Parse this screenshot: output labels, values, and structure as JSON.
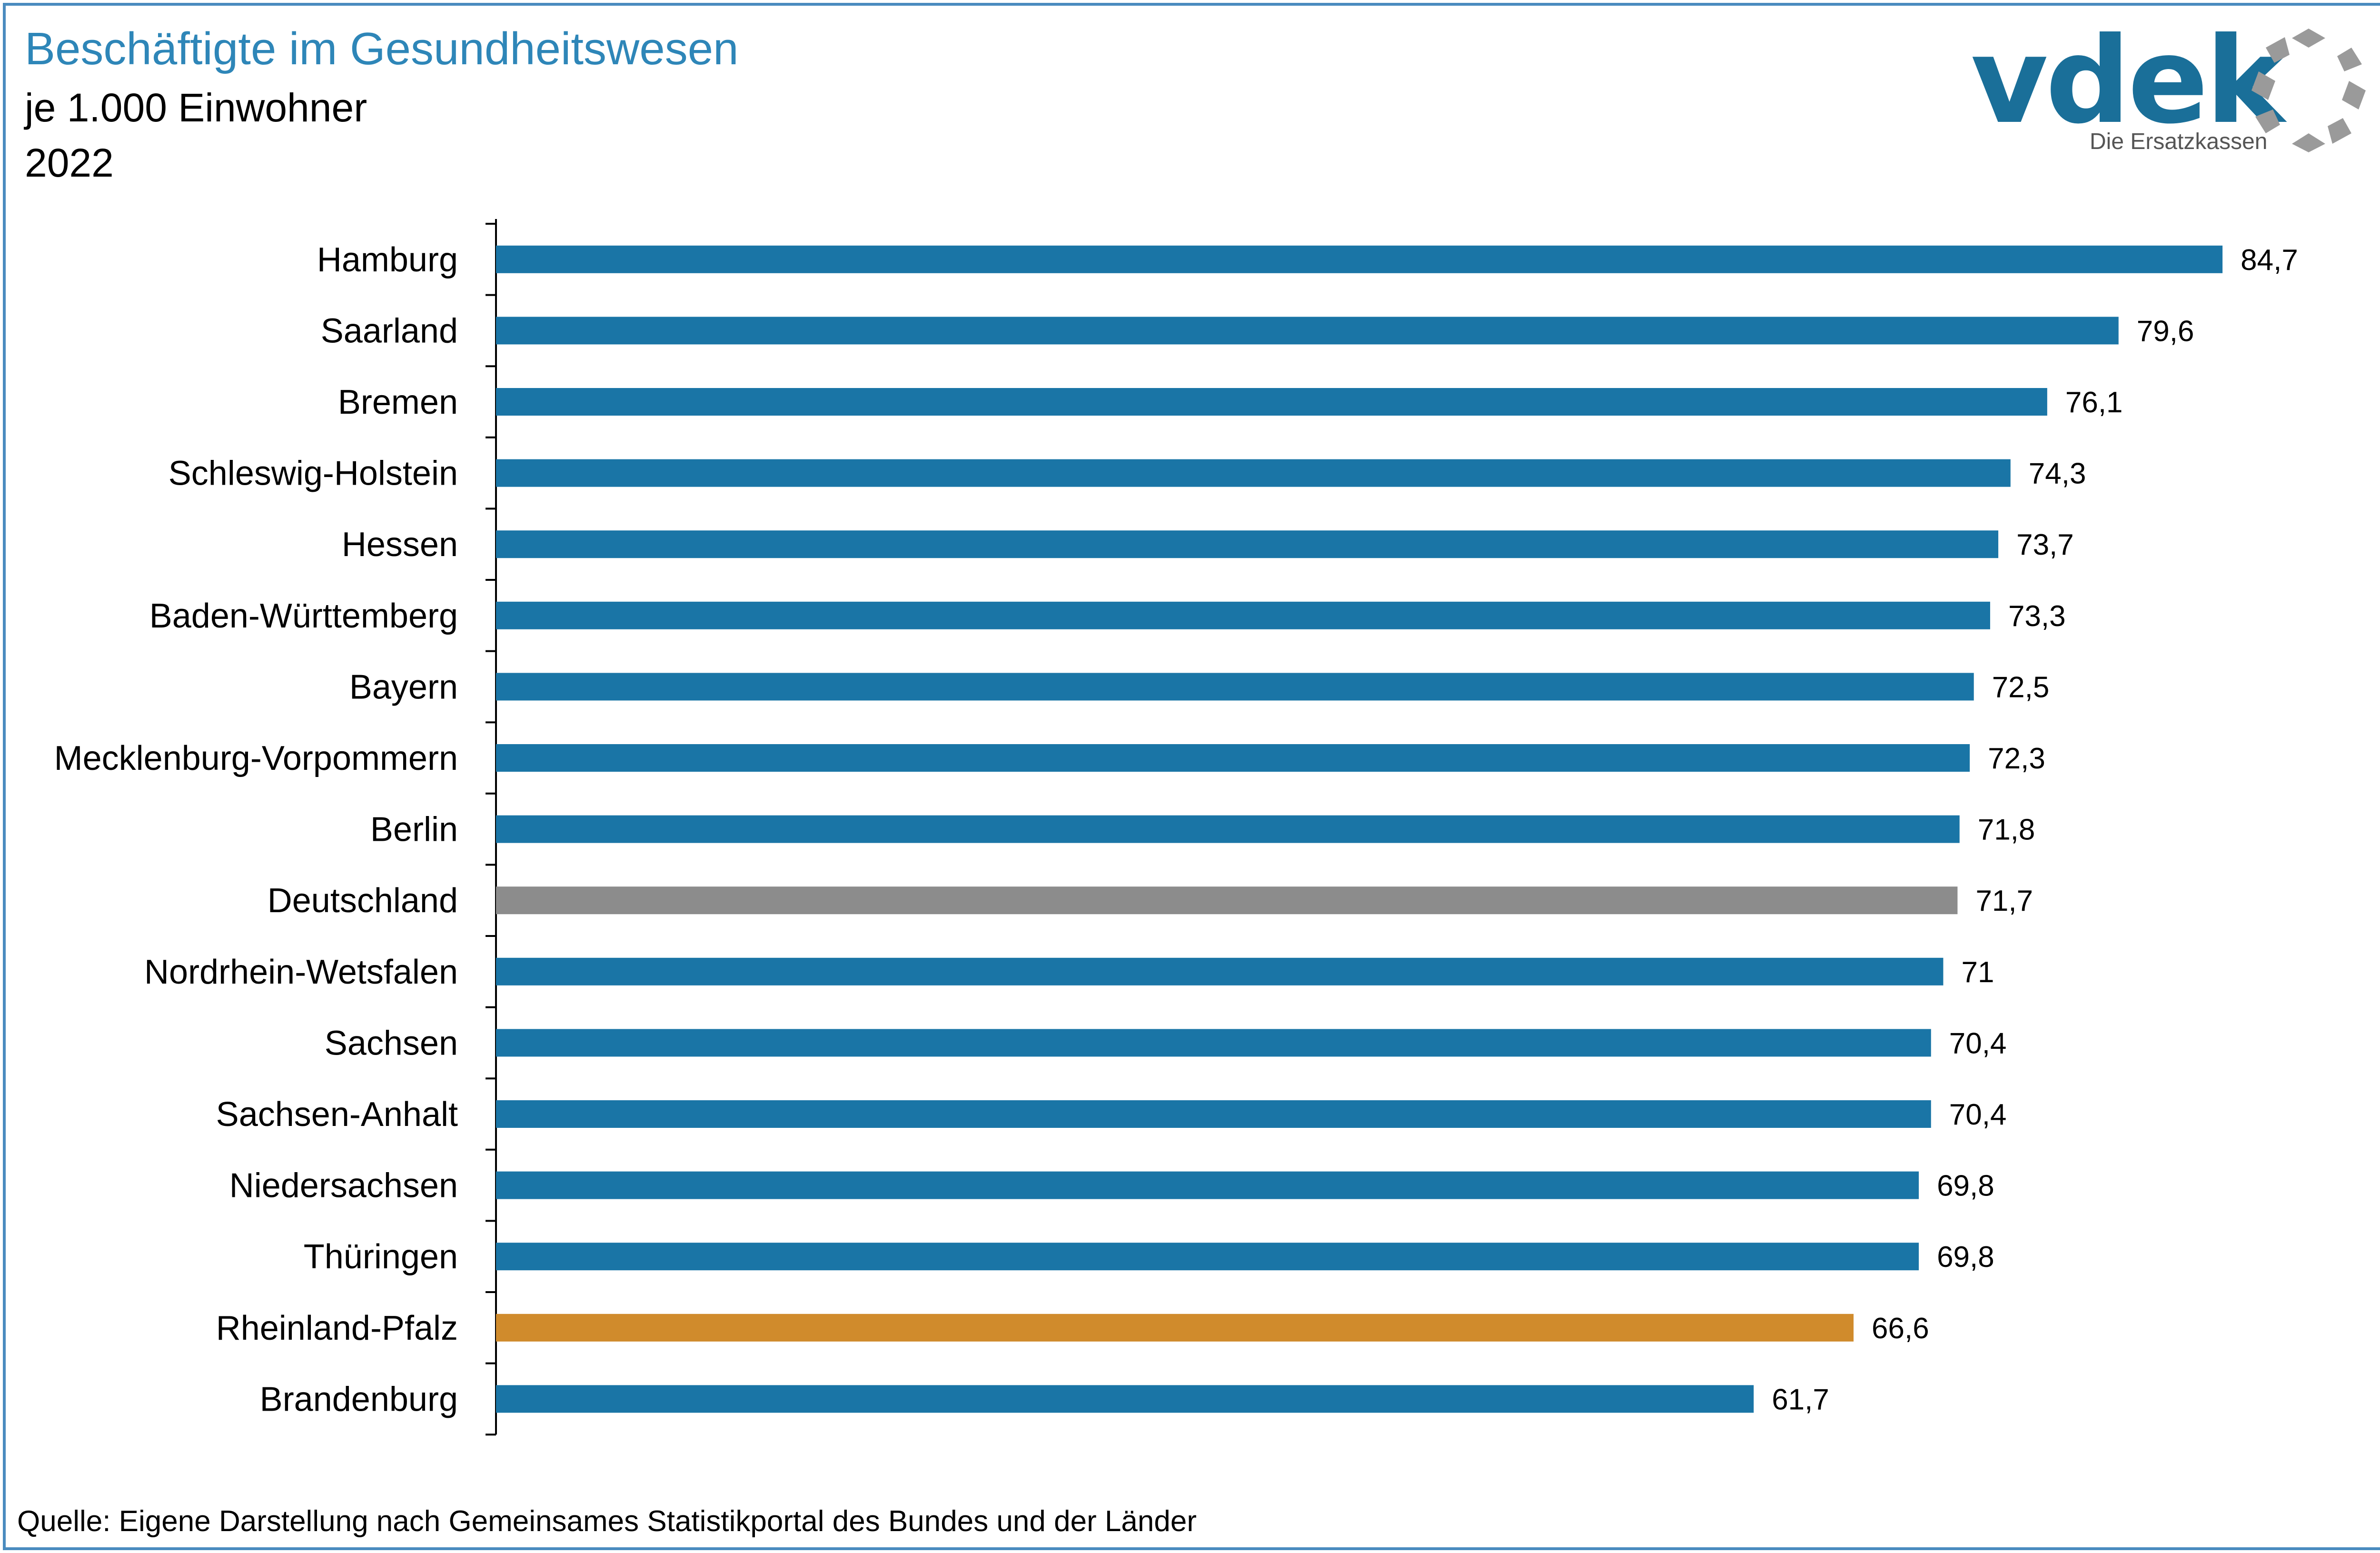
{
  "header": {
    "title": "Beschäftigte im Gesundheitswesen",
    "subtitle": "je 1.000 Einwohner",
    "year": "2022"
  },
  "logo": {
    "wordmark": "vdek",
    "tagline": "Die Ersatzkassen"
  },
  "footer": {
    "source": "Quelle: Eigene Darstellung nach Gemeinsames Statistikportal des Bundes und der Länder"
  },
  "colors": {
    "bar_default": "#1a75a6",
    "bar_germany": "#8c8c8c",
    "bar_highlight": "#d08b2c",
    "title": "#2e86b8",
    "frame": "#4a8bbf"
  },
  "chart_data": {
    "type": "bar",
    "orientation": "horizontal",
    "title": "Beschäftigte im Gesundheitswesen",
    "subtitle": "je 1.000 Einwohner",
    "xlim": [
      0,
      85
    ],
    "grid": false,
    "categories": [
      "Hamburg",
      "Saarland",
      "Bremen",
      "Schleswig-Holstein",
      "Hessen",
      "Baden-Württemberg",
      "Bayern",
      "Mecklenburg-Vorpommern",
      "Berlin",
      "Deutschland",
      "Nordrhein-Wetsfalen",
      "Sachsen",
      "Sachsen-Anhalt",
      "Niedersachsen",
      "Thüringen",
      "Rheinland-Pfalz",
      "Brandenburg"
    ],
    "values": [
      84.7,
      79.6,
      76.1,
      74.3,
      73.7,
      73.3,
      72.5,
      72.3,
      71.8,
      71.7,
      71,
      70.4,
      70.4,
      69.8,
      69.8,
      66.6,
      61.7
    ],
    "value_labels": [
      "84,7",
      "79,6",
      "76,1",
      "74,3",
      "73,7",
      "73,3",
      "72,5",
      "72,3",
      "71,8",
      "71,7",
      "71",
      "70,4",
      "70,4",
      "69,8",
      "69,8",
      "66,6",
      "61,7"
    ],
    "highlight": {
      "Deutschland": "bar_germany",
      "Rheinland-Pfalz": "bar_highlight"
    }
  }
}
